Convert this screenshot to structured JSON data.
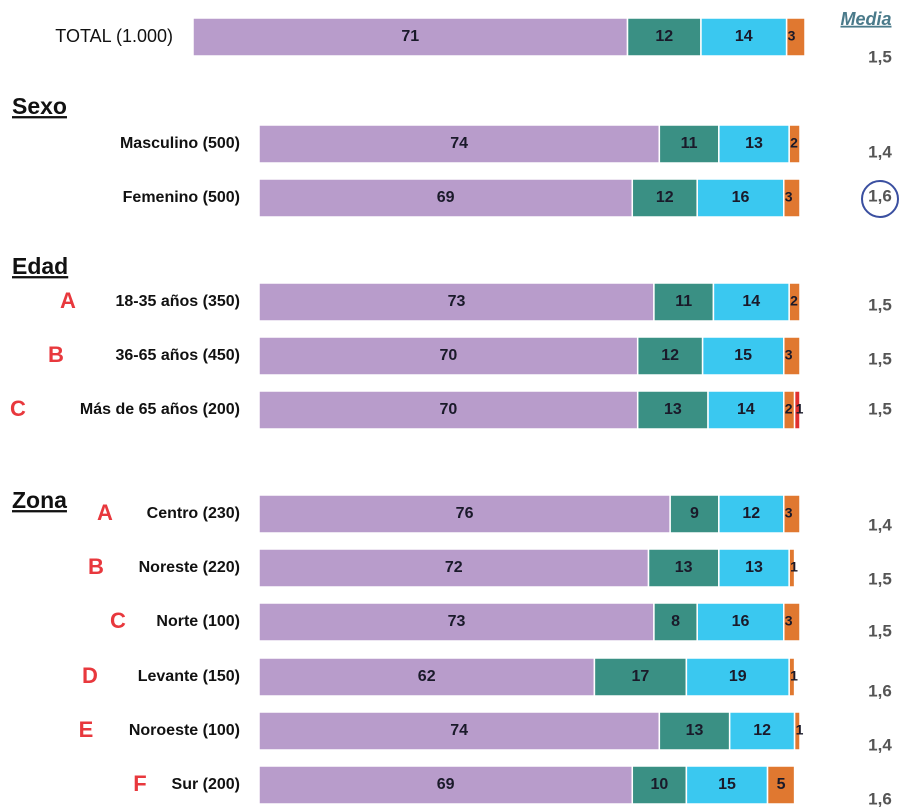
{
  "chart_data": {
    "type": "stacked-barh",
    "categories": [
      "TOTAL (1.000)",
      "Masculino (500)",
      "Femenino (500)",
      "18-35 años (350)",
      "36-65 años (450)",
      "Más de 65 años (200)",
      "Centro (230)",
      "Noreste (220)",
      "Norte (100)",
      "Levante (150)",
      "Noroeste (100)",
      "Sur (200)"
    ],
    "letters": [
      null,
      null,
      null,
      "A",
      "B",
      "C",
      "A",
      "B",
      "C",
      "D",
      "E",
      "F"
    ],
    "headers": [
      "Sexo",
      "Edad",
      "Zona"
    ],
    "xlim": [
      0,
      100
    ],
    "series": [
      {
        "color": "#b89ccb",
        "values": [
          71,
          74,
          69,
          73,
          70,
          70,
          76,
          72,
          73,
          62,
          74,
          69
        ]
      },
      {
        "color": "#3a9084",
        "values": [
          12,
          11,
          12,
          11,
          12,
          13,
          9,
          13,
          8,
          17,
          13,
          10
        ]
      },
      {
        "color": "#3ac8f0",
        "values": [
          14,
          13,
          16,
          14,
          15,
          14,
          12,
          13,
          16,
          19,
          12,
          15
        ]
      },
      {
        "color": "#e07830",
        "values": [
          3,
          2,
          3,
          2,
          3,
          2,
          3,
          1,
          3,
          1,
          1,
          5
        ]
      },
      {
        "color": "#e03030",
        "values": [
          null,
          null,
          null,
          null,
          null,
          1,
          null,
          null,
          null,
          null,
          null,
          null
        ]
      }
    ],
    "media": {
      "title": "Media",
      "values": [
        1.5,
        1.4,
        1.6,
        1.5,
        1.5,
        1.5,
        1.4,
        1.5,
        1.5,
        1.6,
        1.4,
        1.6
      ],
      "value_labels": [
        "1,5",
        "1,4",
        "1,6",
        "1,5",
        "1,5",
        "1,5",
        "1,4",
        "1,5",
        "1,5",
        "1,6",
        "1,4",
        "1,6"
      ]
    }
  }
}
